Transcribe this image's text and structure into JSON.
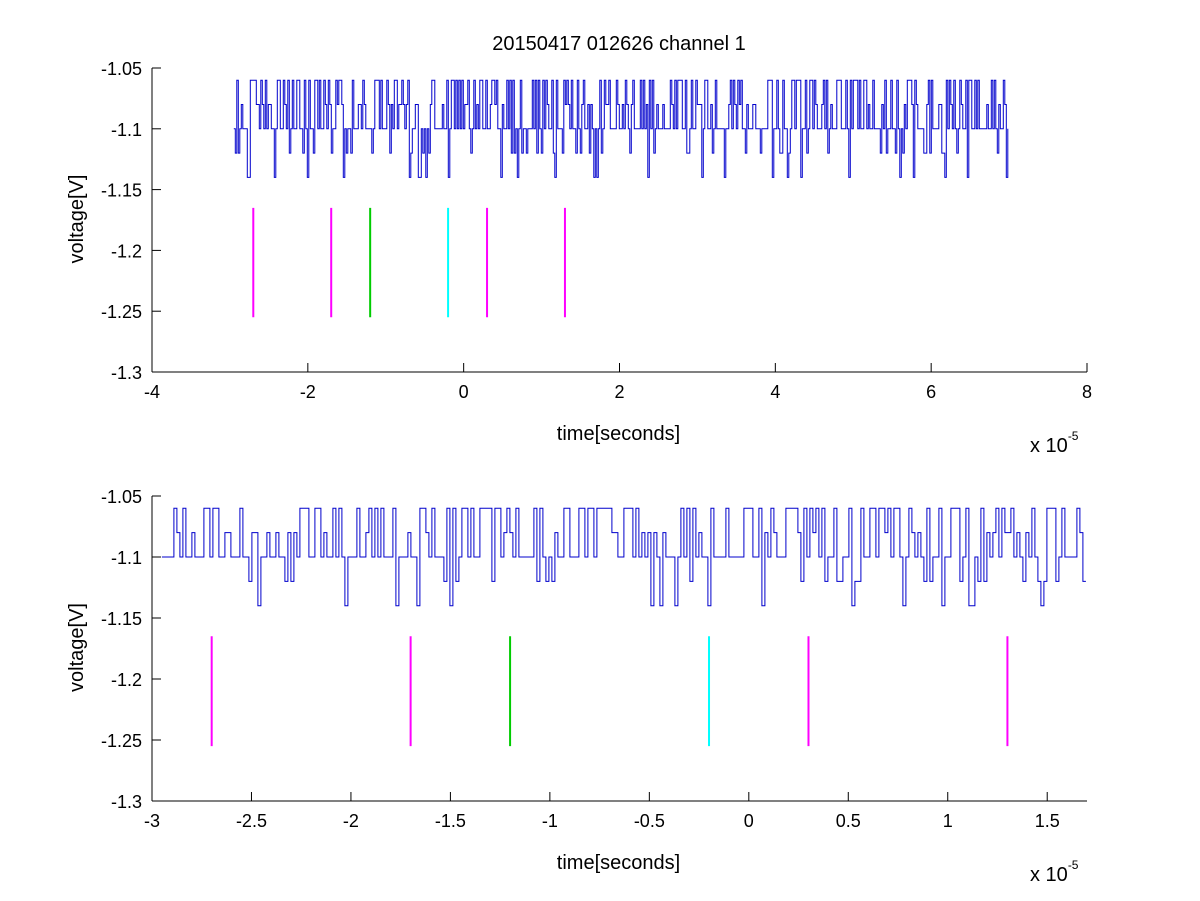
{
  "figure": {
    "title": "20150417 012626 channel 1",
    "background": "#ffffff",
    "colors": {
      "signal": "#0000cc",
      "magenta": "#ff00ff",
      "green": "#00cc00",
      "cyan": "#00ffff"
    }
  },
  "chart_data": [
    {
      "type": "line",
      "title": "20150417 012626 channel 1",
      "xlabel": "time[seconds]",
      "ylabel": "voltage[V]",
      "x_multiplier": "x 10",
      "x_exponent": "-5",
      "xlim": [
        -4,
        8
      ],
      "ylim": [
        -1.3,
        -1.05
      ],
      "xticks": [
        -4,
        -2,
        0,
        2,
        4,
        6,
        8
      ],
      "xtick_labels": [
        "-4",
        "-2",
        "0",
        "2",
        "4",
        "6",
        "8"
      ],
      "yticks": [
        -1.3,
        -1.25,
        -1.2,
        -1.15,
        -1.1,
        -1.05
      ],
      "ytick_labels": [
        "-1.3",
        "-1.25",
        "-1.2",
        "-1.15",
        "-1.1",
        "-1.05"
      ],
      "grid": false,
      "signal": {
        "x_range": [
          -2.95,
          7.0
        ],
        "levels": [
          -1.06,
          -1.08,
          -1.1,
          -1.12,
          -1.14
        ],
        "baseline": -1.1,
        "seed": 7
      },
      "markers": [
        {
          "x": -2.7,
          "y_range": [
            -1.255,
            -1.165
          ],
          "color": "#ff00ff"
        },
        {
          "x": -1.7,
          "y_range": [
            -1.255,
            -1.165
          ],
          "color": "#ff00ff"
        },
        {
          "x": -1.2,
          "y_range": [
            -1.255,
            -1.165
          ],
          "color": "#00cc00"
        },
        {
          "x": -0.2,
          "y_range": [
            -1.255,
            -1.165
          ],
          "color": "#00ffff"
        },
        {
          "x": 0.3,
          "y_range": [
            -1.255,
            -1.165
          ],
          "color": "#ff00ff"
        },
        {
          "x": 1.3,
          "y_range": [
            -1.255,
            -1.165
          ],
          "color": "#ff00ff"
        }
      ]
    },
    {
      "type": "line",
      "title": "",
      "xlabel": "time[seconds]",
      "ylabel": "voltage[V]",
      "x_multiplier": "x 10",
      "x_exponent": "-5",
      "xlim": [
        -3,
        1.7
      ],
      "ylim": [
        -1.3,
        -1.05
      ],
      "xticks": [
        -3,
        -2.5,
        -2,
        -1.5,
        -1,
        -0.5,
        0,
        0.5,
        1,
        1.5
      ],
      "xtick_labels": [
        "-3",
        "-2.5",
        "-2",
        "-1.5",
        "-1",
        "-0.5",
        "0",
        "0.5",
        "1",
        "1.5"
      ],
      "yticks": [
        -1.3,
        -1.25,
        -1.2,
        -1.15,
        -1.1,
        -1.05
      ],
      "ytick_labels": [
        "-1.3",
        "-1.25",
        "-1.2",
        "-1.15",
        "-1.1",
        "-1.05"
      ],
      "grid": false,
      "signal": {
        "x_range": [
          -2.95,
          1.7
        ],
        "levels": [
          -1.06,
          -1.08,
          -1.1,
          -1.12,
          -1.14
        ],
        "baseline": -1.1,
        "seed": 11
      },
      "markers": [
        {
          "x": -2.7,
          "y_range": [
            -1.255,
            -1.165
          ],
          "color": "#ff00ff"
        },
        {
          "x": -1.7,
          "y_range": [
            -1.255,
            -1.165
          ],
          "color": "#ff00ff"
        },
        {
          "x": -1.2,
          "y_range": [
            -1.255,
            -1.165
          ],
          "color": "#00cc00"
        },
        {
          "x": -0.2,
          "y_range": [
            -1.255,
            -1.165
          ],
          "color": "#00ffff"
        },
        {
          "x": 0.3,
          "y_range": [
            -1.255,
            -1.165
          ],
          "color": "#ff00ff"
        },
        {
          "x": 1.3,
          "y_range": [
            -1.255,
            -1.165
          ],
          "color": "#ff00ff"
        }
      ]
    }
  ]
}
